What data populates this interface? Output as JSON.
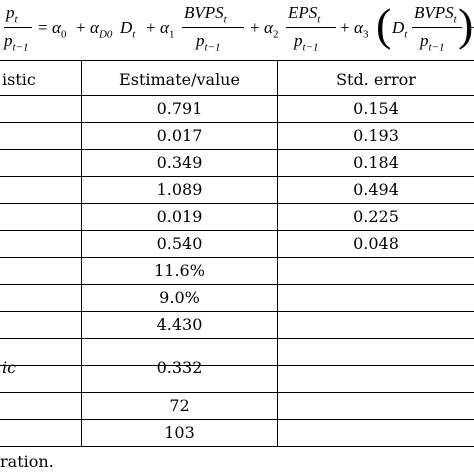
{
  "equation": {
    "lhs_num": "p",
    "lhs_num_sub": "t",
    "lhs_den": "p",
    "lhs_den_sub": "t−1",
    "eq_sign": "=",
    "a0": "α",
    "a0_sub": "0",
    "plus1": "+",
    "aD": "α",
    "aD_sub": "D0",
    "Dt": "D",
    "Dt_sub": "t",
    "plus2": "+",
    "a1": "α",
    "a1_sub": "1",
    "f1_num": "BVPS",
    "f1_num_sub": "t",
    "f1_den": "p",
    "f1_den_sub": "t−1",
    "plus3": "+",
    "a2": "α",
    "a2_sub": "2",
    "f2_num": "EPS",
    "f2_num_sub": "t",
    "f2_den": "p",
    "f2_den_sub": "t−1",
    "plus4": "+",
    "a3": "α",
    "a3_sub": "3",
    "paren_open": "(",
    "Dt2": "D",
    "Dt2_sub": "t",
    "f3_num": "BVPS",
    "f3_num_sub": "t",
    "f3_den": "p",
    "f3_den_sub": "t−1",
    "paren_close": ")",
    "trail": "−"
  },
  "table": {
    "headers": [
      "istic",
      "Estimate/value",
      "Std. error"
    ],
    "rows": [
      {
        "label": "",
        "estimate": "0.791",
        "stderr": "0.154"
      },
      {
        "label": "",
        "estimate": "0.017",
        "stderr": "0.193"
      },
      {
        "label": "",
        "estimate": "0.349",
        "stderr": "0.184"
      },
      {
        "label": "",
        "estimate": "1.089",
        "stderr": "0.494"
      },
      {
        "label": "",
        "estimate": "0.019",
        "stderr": "0.225"
      },
      {
        "label": "",
        "estimate": "0.540",
        "stderr": "0.048"
      },
      {
        "label": "",
        "estimate": "11.6%",
        "stderr": ""
      },
      {
        "label": "",
        "estimate": "9.0%",
        "stderr": ""
      },
      {
        "label": "",
        "estimate": "4.430",
        "stderr": ""
      },
      {
        "label": "ic",
        "estimate": "0.332",
        "stderr": ""
      },
      {
        "label": "",
        "estimate": "72",
        "stderr": ""
      },
      {
        "label": "",
        "estimate": "103",
        "stderr": ""
      }
    ]
  },
  "footnote": "ration."
}
